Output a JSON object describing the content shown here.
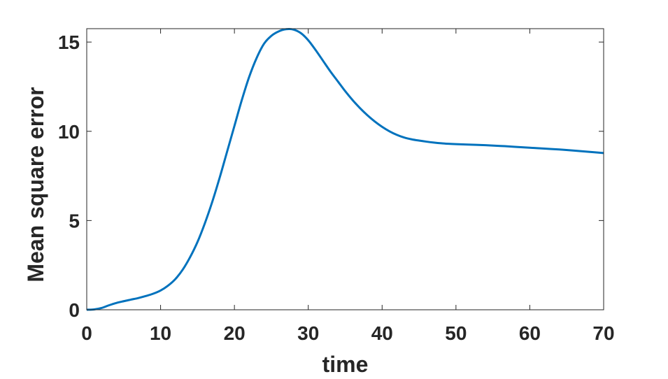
{
  "chart_data": {
    "type": "line",
    "title": "",
    "xlabel": "time",
    "ylabel": "Mean square error",
    "xlim": [
      0,
      70
    ],
    "ylim": [
      0,
      15.75
    ],
    "xticks": [
      0,
      10,
      20,
      30,
      40,
      50,
      60,
      70
    ],
    "yticks": [
      0,
      5,
      10,
      15
    ],
    "xtick_labels": [
      "0",
      "10",
      "20",
      "30",
      "40",
      "50",
      "60",
      "70"
    ],
    "ytick_labels": [
      "0",
      "5",
      "10",
      "15"
    ],
    "grid": false,
    "box": true,
    "series": [
      {
        "color": "#0072BD",
        "x": [
          0,
          1,
          2,
          3,
          4,
          5,
          6,
          7,
          8,
          9,
          10,
          11,
          12,
          13,
          14,
          15,
          16,
          17,
          18,
          19,
          20,
          21,
          22,
          23,
          24,
          25,
          26,
          27,
          28,
          29,
          30,
          31,
          32,
          33,
          34,
          35,
          36,
          37,
          38,
          39,
          40,
          41,
          42,
          43,
          44,
          45,
          46,
          47,
          48,
          49,
          50,
          52,
          54,
          56,
          58,
          60,
          62,
          64,
          66,
          68,
          70
        ],
        "y": [
          0.0,
          0.02,
          0.1,
          0.25,
          0.38,
          0.48,
          0.57,
          0.66,
          0.77,
          0.9,
          1.08,
          1.35,
          1.72,
          2.25,
          2.95,
          3.8,
          4.85,
          6.05,
          7.4,
          8.85,
          10.3,
          11.75,
          13.05,
          14.1,
          14.9,
          15.35,
          15.6,
          15.72,
          15.7,
          15.5,
          15.1,
          14.55,
          13.95,
          13.35,
          12.8,
          12.25,
          11.75,
          11.3,
          10.9,
          10.55,
          10.25,
          10.0,
          9.8,
          9.65,
          9.55,
          9.48,
          9.42,
          9.37,
          9.33,
          9.3,
          9.28,
          9.25,
          9.22,
          9.18,
          9.13,
          9.08,
          9.03,
          8.98,
          8.92,
          8.85,
          8.78
        ]
      }
    ]
  }
}
